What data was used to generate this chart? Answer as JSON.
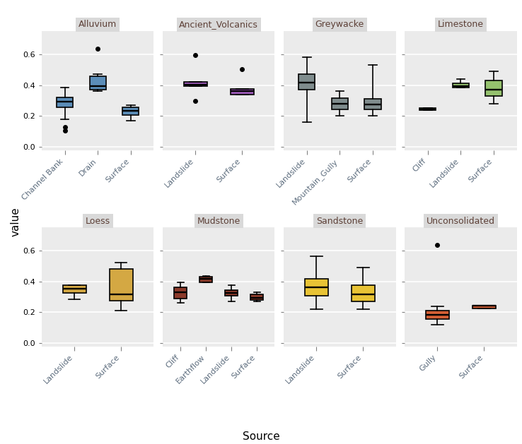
{
  "panels": [
    {
      "title": "Alluvium",
      "row": 0,
      "col": 0,
      "color": "#5b8db8",
      "sources": [
        "Channel Bank",
        "Drain",
        "Surface"
      ],
      "boxes": [
        {
          "q1": 0.255,
          "median": 0.295,
          "q3": 0.32,
          "whislo": 0.18,
          "whishi": 0.385,
          "fliers": [
            0.13,
            0.105
          ]
        },
        {
          "q1": 0.37,
          "median": 0.395,
          "q3": 0.46,
          "whislo": 0.36,
          "whishi": 0.47,
          "fliers": [
            0.635
          ]
        },
        {
          "q1": 0.205,
          "median": 0.235,
          "q3": 0.255,
          "whislo": 0.17,
          "whishi": 0.27,
          "fliers": []
        }
      ]
    },
    {
      "title": "Ancient_Volcanics",
      "row": 0,
      "col": 1,
      "color": "#9b59b6",
      "sources": [
        "Landslide",
        "Surface"
      ],
      "boxes": [
        {
          "q1": 0.395,
          "median": 0.405,
          "q3": 0.42,
          "whislo": 0.395,
          "whishi": 0.42,
          "fliers": [
            0.595,
            0.3
          ]
        },
        {
          "q1": 0.34,
          "median": 0.36,
          "q3": 0.375,
          "whislo": 0.34,
          "whishi": 0.375,
          "fliers": [
            0.505
          ]
        }
      ]
    },
    {
      "title": "Greywacke",
      "row": 0,
      "col": 2,
      "color": "#7f8c8d",
      "sources": [
        "Landslide",
        "Mountain_Gully",
        "Surface"
      ],
      "boxes": [
        {
          "q1": 0.37,
          "median": 0.415,
          "q3": 0.47,
          "whislo": 0.16,
          "whishi": 0.58,
          "fliers": []
        },
        {
          "q1": 0.245,
          "median": 0.28,
          "q3": 0.315,
          "whislo": 0.2,
          "whishi": 0.36,
          "fliers": []
        },
        {
          "q1": 0.245,
          "median": 0.275,
          "q3": 0.31,
          "whislo": 0.2,
          "whishi": 0.53,
          "fliers": []
        }
      ]
    },
    {
      "title": "Limestone",
      "row": 0,
      "col": 3,
      "color": "#95c16e",
      "sources": [
        "Cliff",
        "Landslide",
        "Surface"
      ],
      "boxes": [
        {
          "q1": 0.24,
          "median": 0.245,
          "q3": 0.25,
          "whislo": 0.24,
          "whishi": 0.25,
          "fliers": []
        },
        {
          "q1": 0.385,
          "median": 0.395,
          "q3": 0.41,
          "whislo": 0.385,
          "whishi": 0.44,
          "fliers": []
        },
        {
          "q1": 0.33,
          "median": 0.37,
          "q3": 0.43,
          "whislo": 0.28,
          "whishi": 0.49,
          "fliers": []
        }
      ]
    },
    {
      "title": "Loess",
      "row": 1,
      "col": 0,
      "color": "#d4a843",
      "sources": [
        "Landslide",
        "Surface"
      ],
      "boxes": [
        {
          "q1": 0.325,
          "median": 0.355,
          "q3": 0.375,
          "whislo": 0.285,
          "whishi": 0.375,
          "fliers": []
        },
        {
          "q1": 0.275,
          "median": 0.315,
          "q3": 0.48,
          "whislo": 0.21,
          "whishi": 0.52,
          "fliers": []
        }
      ]
    },
    {
      "title": "Mudstone",
      "row": 1,
      "col": 1,
      "color": "#8b3a2a",
      "sources": [
        "Cliff",
        "Earthflow",
        "Landslide",
        "Surface"
      ],
      "boxes": [
        {
          "q1": 0.29,
          "median": 0.33,
          "q3": 0.36,
          "whislo": 0.26,
          "whishi": 0.395,
          "fliers": []
        },
        {
          "q1": 0.395,
          "median": 0.415,
          "q3": 0.43,
          "whislo": 0.395,
          "whishi": 0.435,
          "fliers": []
        },
        {
          "q1": 0.305,
          "median": 0.325,
          "q3": 0.345,
          "whislo": 0.27,
          "whishi": 0.375,
          "fliers": []
        },
        {
          "q1": 0.28,
          "median": 0.295,
          "q3": 0.315,
          "whislo": 0.27,
          "whishi": 0.33,
          "fliers": []
        }
      ]
    },
    {
      "title": "Sandstone",
      "row": 1,
      "col": 2,
      "color": "#e8c335",
      "sources": [
        "Landslide",
        "Surface"
      ],
      "boxes": [
        {
          "q1": 0.305,
          "median": 0.36,
          "q3": 0.415,
          "whislo": 0.22,
          "whishi": 0.565,
          "fliers": []
        },
        {
          "q1": 0.27,
          "median": 0.315,
          "q3": 0.375,
          "whislo": 0.22,
          "whishi": 0.49,
          "fliers": []
        }
      ]
    },
    {
      "title": "Unconsolidated",
      "row": 1,
      "col": 3,
      "color": "#d45f35",
      "sources": [
        "Gully",
        "Surface"
      ],
      "boxes": [
        {
          "q1": 0.155,
          "median": 0.185,
          "q3": 0.21,
          "whislo": 0.12,
          "whishi": 0.24,
          "fliers": [
            0.635
          ]
        },
        {
          "q1": 0.225,
          "median": 0.245,
          "q3": 0.245,
          "whislo": 0.225,
          "whishi": 0.245,
          "fliers": []
        }
      ]
    }
  ],
  "ylim": [
    -0.02,
    0.75
  ],
  "yticks": [
    0.0,
    0.2,
    0.4,
    0.6
  ],
  "ylabel": "value",
  "xlabel": "Source",
  "bg_color": "#ebebeb",
  "panel_title_bg": "#d9d9d9",
  "grid_color": "white",
  "box_width": 0.5,
  "linewidth": 1.2,
  "flier_size": 4,
  "tick_label_color": "#5d6d7e",
  "title_color": "#5d4037"
}
